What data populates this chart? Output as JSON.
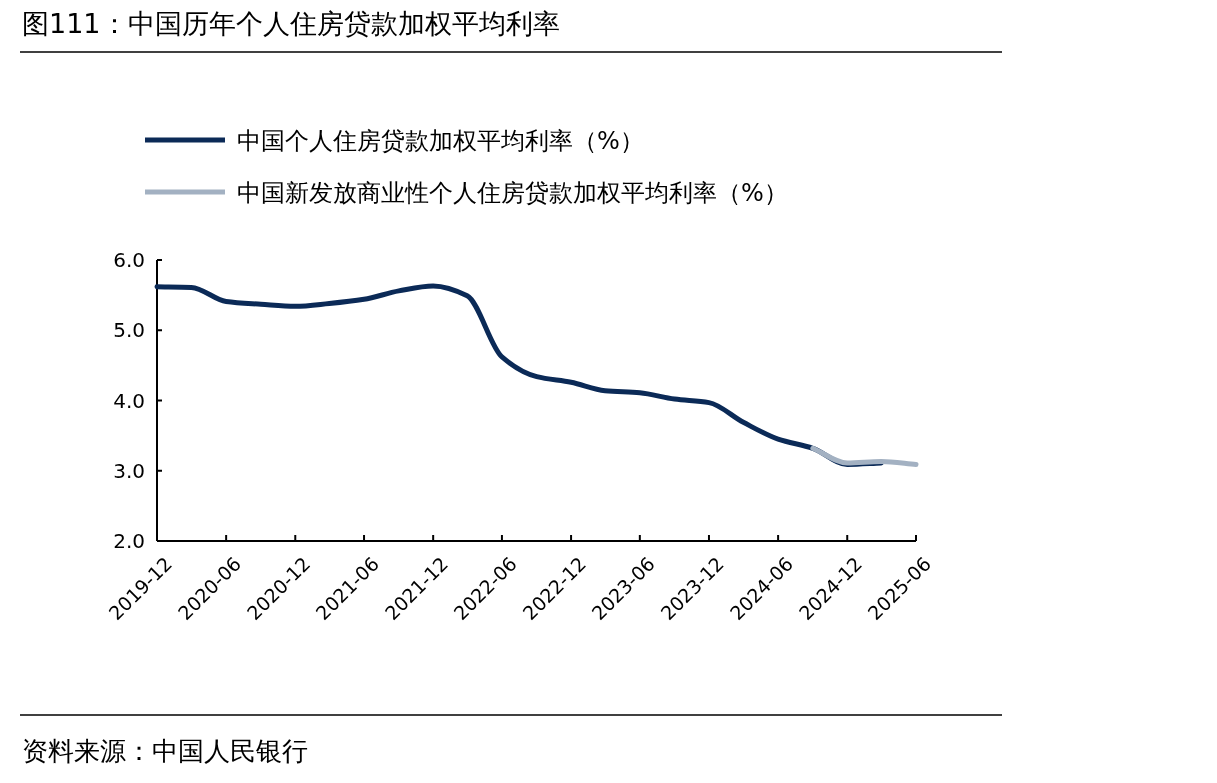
{
  "chart_data": {
    "type": "line",
    "title": "图111：中国历年个人住房贷款加权平均利率",
    "x": [
      "2019-12",
      "2020-03",
      "2020-06",
      "2020-09",
      "2020-12",
      "2021-03",
      "2021-06",
      "2021-09",
      "2021-12",
      "2022-03",
      "2022-06",
      "2022-09",
      "2022-12",
      "2023-03",
      "2023-06",
      "2023-09",
      "2023-12",
      "2024-03",
      "2024-06",
      "2024-09",
      "2024-12",
      "2025-03",
      "2025-06"
    ],
    "series": [
      {
        "name": "中国个人住房贷款加权平均利率（%）",
        "color": "#0b2a57",
        "values": [
          5.62,
          5.61,
          5.41,
          5.37,
          5.34,
          5.38,
          5.44,
          5.56,
          5.63,
          5.49,
          4.62,
          4.34,
          4.26,
          4.14,
          4.11,
          4.02,
          3.97,
          3.69,
          3.45,
          3.32,
          3.09,
          3.11,
          null
        ]
      },
      {
        "name": "中国新发放商业性个人住房贷款加权平均利率（%）",
        "color": "#a3b1c2",
        "values": [
          null,
          null,
          null,
          null,
          null,
          null,
          null,
          null,
          null,
          null,
          null,
          null,
          null,
          null,
          null,
          null,
          null,
          null,
          null,
          3.32,
          3.11,
          3.13,
          3.09
        ]
      }
    ],
    "xlim": [
      "2019-12",
      "2025-06"
    ],
    "xticks": [
      "2019-12",
      "2020-06",
      "2020-12",
      "2021-06",
      "2021-12",
      "2022-06",
      "2022-12",
      "2023-06",
      "2023-12",
      "2024-06",
      "2024-12",
      "2025-06"
    ],
    "ylim": [
      2,
      6
    ],
    "yticks": [
      {
        "value": 2,
        "label": "2.0"
      },
      {
        "value": 3,
        "label": "3.0"
      },
      {
        "value": 4,
        "label": "4.0"
      },
      {
        "value": 5,
        "label": "5.0"
      },
      {
        "value": 6,
        "label": "6.0"
      }
    ],
    "grid": false,
    "legend": "top left",
    "marker": "none",
    "line_style": "solid",
    "annotations": [
      "资料来源：中国人民银行"
    ]
  }
}
